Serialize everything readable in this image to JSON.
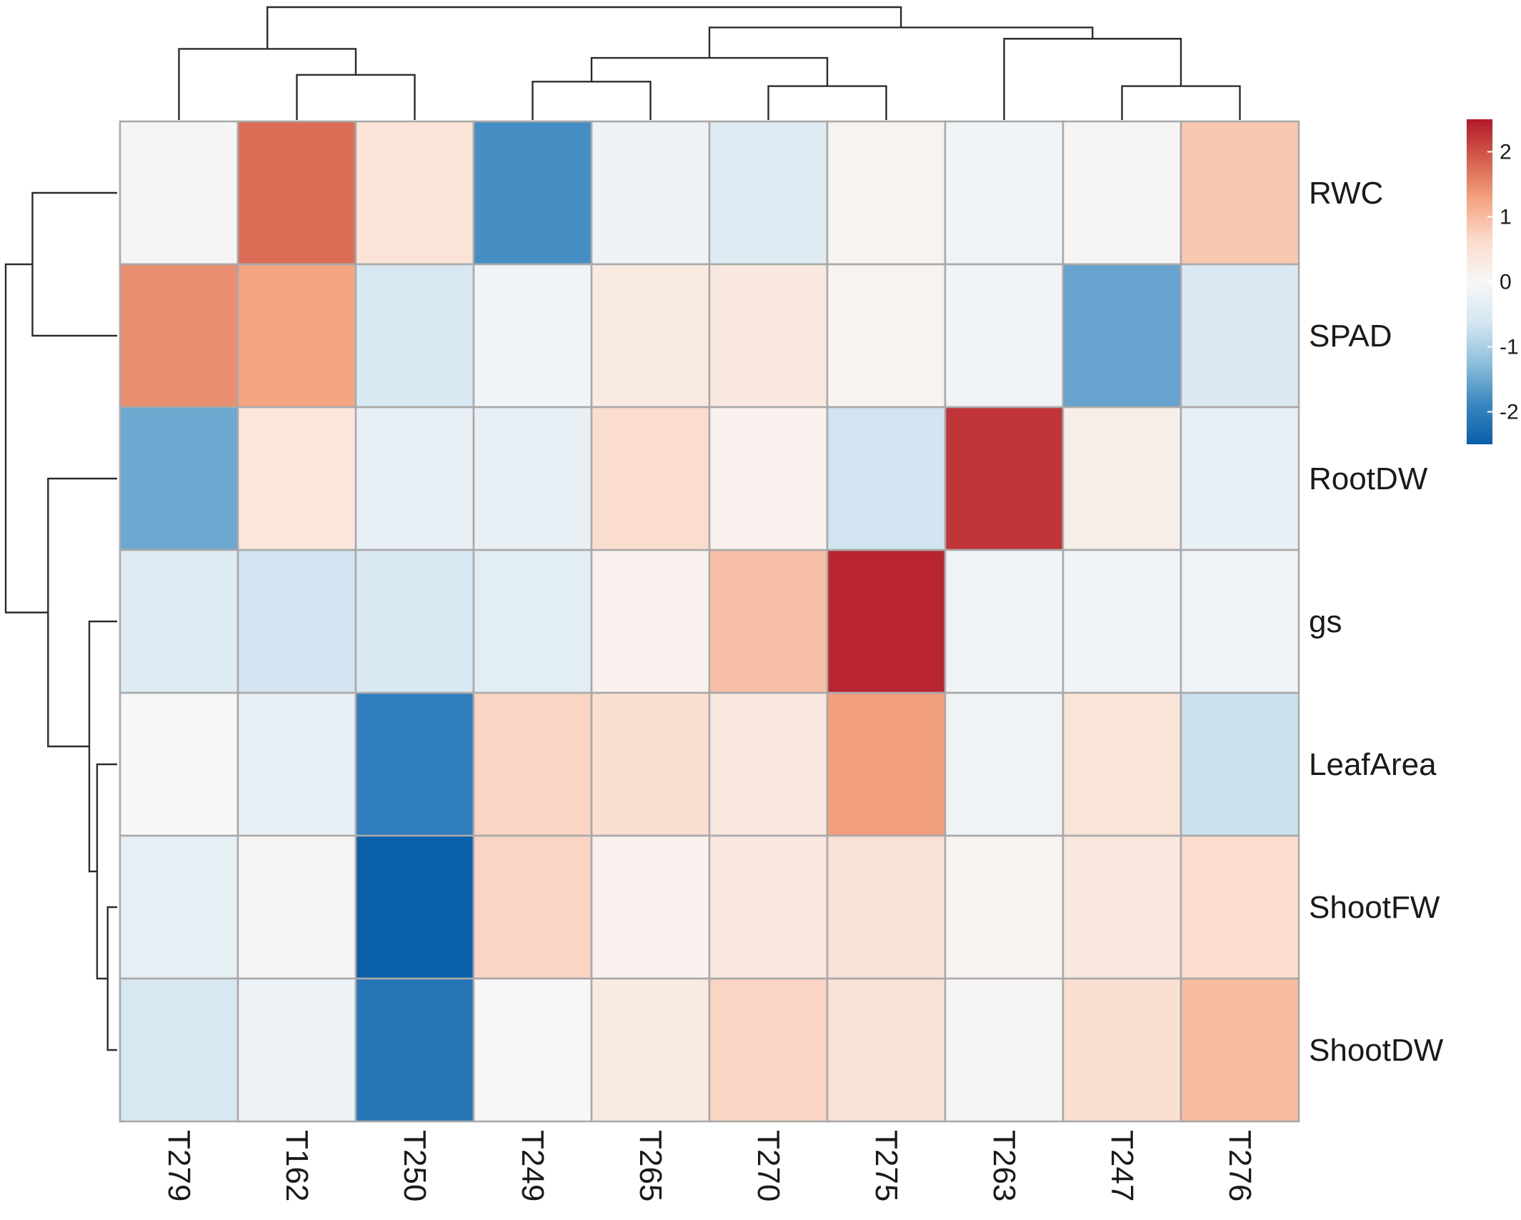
{
  "chart_data": {
    "type": "heatmap",
    "title": "",
    "rows": [
      "RWC",
      "SPAD",
      "RootDW",
      "gs",
      "LeafArea",
      "ShootFW",
      "ShootDW"
    ],
    "columns": [
      "T279",
      "T162",
      "T250",
      "T249",
      "T265",
      "T270",
      "T275",
      "T263",
      "T247",
      "T276"
    ],
    "values": [
      [
        0.05,
        1.75,
        0.45,
        -1.8,
        -0.2,
        -0.45,
        0.1,
        -0.1,
        0.05,
        0.85
      ],
      [
        1.45,
        1.25,
        -0.55,
        -0.1,
        0.3,
        0.35,
        0.1,
        -0.1,
        -1.55,
        -0.5
      ],
      [
        -1.5,
        0.4,
        -0.25,
        -0.25,
        0.6,
        0.15,
        -0.65,
        2.25,
        0.2,
        -0.25
      ],
      [
        -0.45,
        -0.65,
        -0.55,
        -0.35,
        0.15,
        0.95,
        2.4,
        -0.1,
        -0.1,
        -0.1
      ],
      [
        0.0,
        -0.25,
        -2.0,
        0.7,
        0.55,
        0.35,
        1.3,
        -0.15,
        0.45,
        -0.7
      ],
      [
        -0.3,
        0.05,
        -2.55,
        0.7,
        0.15,
        0.35,
        0.5,
        0.1,
        0.35,
        0.6
      ],
      [
        -0.55,
        -0.2,
        -2.15,
        0.0,
        0.3,
        0.7,
        0.5,
        0.05,
        0.55,
        1.0
      ]
    ],
    "color_scale": {
      "min": -2.5,
      "max": 2.5,
      "stops": [
        "#0a5fab",
        "#3a87c0",
        "#8ebfdc",
        "#d4e6f1",
        "#f7f7f7",
        "#fbdccc",
        "#f4a582",
        "#d6604d",
        "#b2182b"
      ]
    },
    "legend": {
      "position": "right",
      "ticks": [
        2,
        1,
        0,
        -1,
        -2
      ],
      "tick_labels": [
        "2",
        "1",
        "0",
        "-1",
        "-2"
      ]
    },
    "column_dendrogram": [
      [
        1,
        2,
        0.4
      ],
      [
        0,
        10,
        0.63
      ],
      [
        3,
        4,
        0.34
      ],
      [
        5,
        6,
        0.3
      ],
      [
        12,
        13,
        0.55
      ],
      [
        8,
        9,
        0.3
      ],
      [
        7,
        15,
        0.72
      ],
      [
        14,
        16,
        0.82
      ],
      [
        11,
        17,
        1.0
      ]
    ],
    "row_dendrogram": [
      [
        5,
        6,
        0.085
      ],
      [
        4,
        7,
        0.18
      ],
      [
        3,
        8,
        0.25
      ],
      [
        2,
        9,
        0.62
      ],
      [
        0,
        1,
        0.76
      ],
      [
        10,
        11,
        1.0
      ]
    ]
  }
}
